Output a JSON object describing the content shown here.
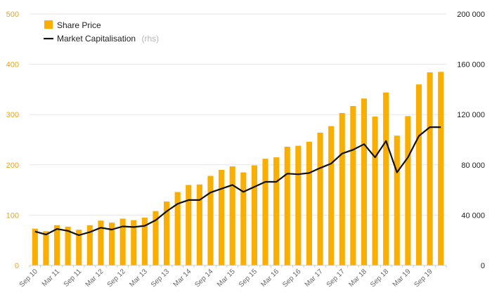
{
  "colors": {
    "bar": "#F9AE00",
    "line": "#111111",
    "grid": "#e7e7e7",
    "left_axis_text": "#F0A500",
    "right_axis_text": "#222222"
  },
  "legend": {
    "share_price_label": "Share Price",
    "market_cap_label": "Market Capitalisation",
    "market_cap_note": "(rhs)"
  },
  "chart_data": {
    "type": "bar",
    "title": "",
    "xlabel": "",
    "ylabel": "",
    "ylim": [
      0,
      500
    ],
    "y2lim": [
      0,
      200000
    ],
    "left_ticks": [
      0,
      100,
      200,
      300,
      400,
      500
    ],
    "right_ticks": [
      "0",
      "40 000",
      "80 000",
      "120 000",
      "160 000",
      "200 000"
    ],
    "x_labels": [
      "Sep 10",
      "Mar 11",
      "Sep 11",
      "Mar 12",
      "Sep 12",
      "Mar 13",
      "Sep 13",
      "Mar 14",
      "Sep 14",
      "Mar 15",
      "Sep 15",
      "Mar 16",
      "Sep 16",
      "Mar 17",
      "Sep 17",
      "Mar 18",
      "Sep 18",
      "Mar 19",
      "Sep 19"
    ],
    "series": [
      {
        "name": "Share Price",
        "type": "bar",
        "axis": "left",
        "values": [
          73,
          68,
          80,
          77,
          71,
          80,
          89,
          85,
          93,
          90,
          95,
          108,
          127,
          146,
          160,
          161,
          178,
          190,
          197,
          185,
          199,
          212,
          215,
          236,
          238,
          246,
          264,
          277,
          303,
          317,
          332,
          296,
          344,
          258,
          297,
          360,
          384,
          385
        ]
      },
      {
        "name": "Market Capitalisation",
        "type": "line",
        "axis": "right",
        "values": [
          27000,
          24500,
          29000,
          27500,
          24000,
          26500,
          30000,
          28500,
          31000,
          30500,
          31500,
          36000,
          43000,
          49000,
          52000,
          52000,
          58000,
          61000,
          64000,
          58500,
          62500,
          66500,
          66500,
          73000,
          72500,
          73500,
          77500,
          81000,
          89000,
          92000,
          96500,
          86000,
          99000,
          74000,
          86000,
          103000,
          110000,
          110000
        ]
      }
    ]
  }
}
